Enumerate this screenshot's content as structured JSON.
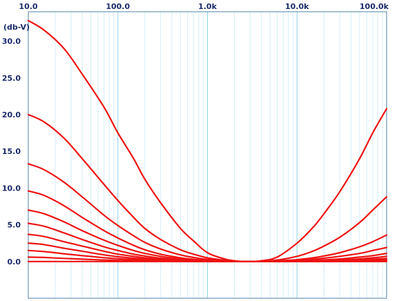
{
  "chart_data": {
    "type": "line",
    "title": "",
    "xlabel": "",
    "ylabel": "(db-V)",
    "x_scale": "log",
    "xlim": [
      10,
      100000
    ],
    "ylim": [
      -5,
      34
    ],
    "grid": true,
    "x_tick_labels": [
      "10.0",
      "100.0",
      "1.0k",
      "10.0k",
      "100.0k"
    ],
    "y_tick_labels": [
      "30.0",
      "25.0",
      "20.0",
      "15.0",
      "10.0",
      "5.0",
      "0.0"
    ],
    "y_tick_values": [
      30,
      25,
      20,
      15,
      10,
      5,
      0
    ],
    "x_tick_values": [
      10,
      100,
      1000,
      10000,
      100000
    ],
    "series": [
      {
        "x": [
          10,
          15,
          25,
          40,
          70,
          100,
          150,
          200,
          300,
          500,
          700,
          1000,
          1500,
          2000,
          2800,
          4000,
          6000,
          10000,
          15000,
          20000,
          30000,
          50000,
          70000,
          100000
        ],
        "y": [
          32.8,
          31.5,
          29.0,
          25.5,
          21.0,
          17.5,
          14.0,
          11.2,
          8.0,
          4.5,
          2.8,
          1.2,
          0.4,
          0.1,
          0,
          0.1,
          0.6,
          2.5,
          4.6,
          6.5,
          9.5,
          14.0,
          17.5,
          20.8
        ]
      },
      {
        "x": [
          10,
          15,
          25,
          40,
          70,
          100,
          150,
          200,
          300,
          500,
          700,
          1000,
          1500,
          2000,
          2800,
          4000,
          6000,
          10000,
          15000,
          20000,
          30000,
          50000,
          70000,
          100000
        ],
        "y": [
          20.0,
          19.0,
          16.8,
          14.0,
          10.5,
          8.3,
          6.0,
          4.5,
          3.0,
          1.6,
          1.0,
          0.5,
          0.2,
          0.05,
          0,
          0.05,
          0.2,
          0.7,
          1.4,
          2.1,
          3.3,
          5.3,
          7.0,
          8.8
        ]
      },
      {
        "x": [
          10,
          15,
          25,
          40,
          70,
          100,
          150,
          200,
          300,
          500,
          700,
          1000,
          1500,
          2000,
          2800,
          4000,
          6000,
          10000,
          15000,
          20000,
          30000,
          50000,
          70000,
          100000
        ],
        "y": [
          13.3,
          12.5,
          10.8,
          8.8,
          6.3,
          4.9,
          3.5,
          2.6,
          1.7,
          0.9,
          0.55,
          0.28,
          0.1,
          0.03,
          0,
          0.02,
          0.08,
          0.25,
          0.5,
          0.75,
          1.2,
          2.0,
          2.7,
          3.6
        ]
      },
      {
        "x": [
          10,
          15,
          25,
          40,
          70,
          100,
          150,
          200,
          300,
          500,
          700,
          1000,
          1500,
          2000,
          2800,
          4000,
          6000,
          10000,
          15000,
          20000,
          30000,
          50000,
          70000,
          100000
        ],
        "y": [
          9.6,
          9.0,
          7.6,
          6.0,
          4.2,
          3.2,
          2.2,
          1.6,
          1.0,
          0.5,
          0.3,
          0.15,
          0.05,
          0.02,
          0,
          0.01,
          0.05,
          0.15,
          0.3,
          0.45,
          0.7,
          1.1,
          1.5,
          1.9
        ]
      },
      {
        "x": [
          10,
          15,
          25,
          40,
          70,
          100,
          150,
          200,
          300,
          500,
          700,
          1000,
          1500,
          2000,
          2800,
          4000,
          6000,
          10000,
          15000,
          20000,
          30000,
          50000,
          70000,
          100000
        ],
        "y": [
          7.0,
          6.5,
          5.4,
          4.2,
          2.9,
          2.2,
          1.5,
          1.1,
          0.7,
          0.35,
          0.2,
          0.1,
          0.03,
          0.01,
          0,
          0.01,
          0.03,
          0.08,
          0.15,
          0.22,
          0.35,
          0.6,
          0.8,
          1.1
        ]
      },
      {
        "x": [
          10,
          15,
          25,
          40,
          70,
          100,
          150,
          200,
          300,
          500,
          700,
          1000,
          1500,
          2000,
          2800,
          4000,
          6000,
          10000,
          15000,
          20000,
          30000,
          50000,
          70000,
          100000
        ],
        "y": [
          5.2,
          4.8,
          3.9,
          3.0,
          2.0,
          1.5,
          1.0,
          0.75,
          0.45,
          0.22,
          0.13,
          0.07,
          0.02,
          0.01,
          0,
          0.005,
          0.02,
          0.05,
          0.09,
          0.13,
          0.2,
          0.35,
          0.5,
          0.7
        ]
      },
      {
        "x": [
          10,
          15,
          25,
          40,
          70,
          100,
          150,
          200,
          300,
          500,
          700,
          1000,
          1500,
          2000,
          2800,
          4000,
          6000,
          10000,
          15000,
          20000,
          30000,
          50000,
          70000,
          100000
        ],
        "y": [
          3.7,
          3.4,
          2.7,
          2.1,
          1.4,
          1.0,
          0.7,
          0.5,
          0.3,
          0.15,
          0.09,
          0.05,
          0.015,
          0.005,
          0,
          0.003,
          0.01,
          0.03,
          0.05,
          0.08,
          0.12,
          0.2,
          0.3,
          0.4
        ]
      },
      {
        "x": [
          10,
          15,
          25,
          40,
          70,
          100,
          150,
          200,
          300,
          500,
          700,
          1000,
          1500,
          2000,
          2800,
          4000,
          6000,
          10000,
          15000,
          20000,
          30000,
          50000,
          70000,
          100000
        ],
        "y": [
          2.5,
          2.3,
          1.8,
          1.4,
          0.9,
          0.65,
          0.45,
          0.32,
          0.2,
          0.1,
          0.06,
          0.03,
          0.01,
          0.003,
          0,
          0.002,
          0.006,
          0.015,
          0.03,
          0.05,
          0.07,
          0.12,
          0.17,
          0.22
        ]
      },
      {
        "x": [
          10,
          15,
          25,
          40,
          70,
          100,
          150,
          200,
          300,
          500,
          700,
          1000,
          1500,
          2000,
          2800,
          4000,
          6000,
          10000,
          15000,
          20000,
          30000,
          50000,
          70000,
          100000
        ],
        "y": [
          1.5,
          1.35,
          1.05,
          0.8,
          0.52,
          0.38,
          0.26,
          0.19,
          0.12,
          0.06,
          0.035,
          0.018,
          0.006,
          0.002,
          0,
          0.001,
          0.003,
          0.008,
          0.015,
          0.025,
          0.04,
          0.06,
          0.09,
          0.12
        ]
      },
      {
        "x": [
          10,
          15,
          25,
          40,
          70,
          100,
          150,
          200,
          300,
          500,
          700,
          1000,
          1500,
          2000,
          2800,
          4000,
          6000,
          10000,
          15000,
          20000,
          30000,
          50000,
          70000,
          100000
        ],
        "y": [
          0.6,
          0.55,
          0.42,
          0.32,
          0.21,
          0.15,
          0.1,
          0.075,
          0.05,
          0.025,
          0.015,
          0.008,
          0.003,
          0.001,
          0,
          0.0005,
          0.0015,
          0.004,
          0.007,
          0.01,
          0.016,
          0.025,
          0.035,
          0.05
        ]
      },
      {
        "x": [
          10,
          100000
        ],
        "y": [
          0,
          0
        ]
      }
    ],
    "colors": {
      "curve": "#ee1111",
      "grid_major": "#8fd4e6",
      "grid_minor": "#d4eef5",
      "axis": "#6a96b8",
      "label": "#1a2a6a"
    }
  }
}
